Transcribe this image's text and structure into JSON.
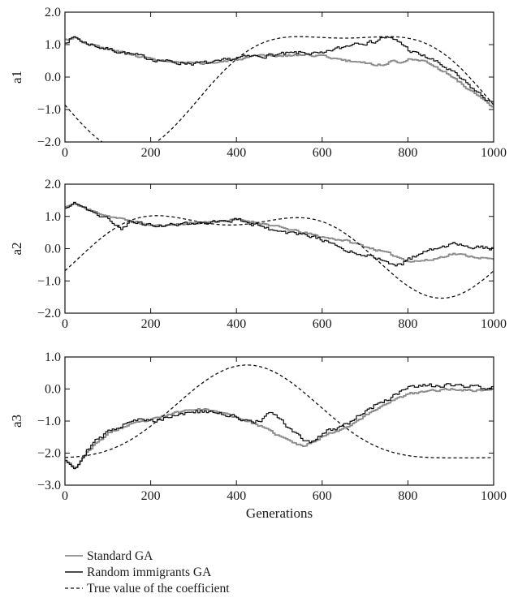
{
  "chart_data": [
    {
      "type": "line",
      "ylabel": "a1",
      "xlabel": "",
      "xlim": [
        0,
        1000
      ],
      "ylim": [
        -2.0,
        2.0
      ],
      "xticks": [
        0,
        200,
        400,
        600,
        800,
        1000
      ],
      "yticks": [
        "2.0",
        "1.0",
        "0.0",
        "-1.0",
        "-2.0"
      ],
      "series": [
        {
          "name": "Standard GA",
          "color": "#8c8c8c",
          "x": [
            0,
            20,
            40,
            60,
            80,
            100,
            150,
            200,
            250,
            300,
            350,
            400,
            450,
            500,
            550,
            600,
            650,
            700,
            720,
            740,
            760,
            780,
            800,
            850,
            900,
            950,
            1000
          ],
          "y": [
            1.15,
            1.25,
            1.05,
            1.0,
            0.9,
            0.85,
            0.7,
            0.55,
            0.45,
            0.42,
            0.45,
            0.55,
            0.65,
            0.65,
            0.7,
            0.65,
            0.5,
            0.45,
            0.35,
            0.4,
            0.5,
            0.45,
            0.6,
            0.4,
            0.0,
            -0.5,
            -1.0
          ],
          "noise": 0.05,
          "seed": 3
        },
        {
          "name": "Random immigrants GA",
          "color": "#111111",
          "x": [
            0,
            20,
            40,
            60,
            80,
            100,
            150,
            200,
            250,
            300,
            350,
            400,
            450,
            500,
            550,
            600,
            620,
            640,
            660,
            680,
            700,
            720,
            740,
            760,
            780,
            800,
            850,
            900,
            950,
            1000
          ],
          "y": [
            1.1,
            1.25,
            1.05,
            1.0,
            0.9,
            0.85,
            0.7,
            0.55,
            0.45,
            0.42,
            0.45,
            0.6,
            0.65,
            0.7,
            0.75,
            0.7,
            0.85,
            0.9,
            1.0,
            1.1,
            1.05,
            1.1,
            1.25,
            1.15,
            1.05,
            0.8,
            0.55,
            0.15,
            -0.4,
            -0.9
          ],
          "noise": 0.09,
          "seed": 7
        },
        {
          "name": "True value of the coefficient",
          "color": "#111111",
          "dashed": true,
          "fn": "1.75*cos(2*pi*(x-650)/1000)-0.55*cos(4*pi*(x-650)/1000)"
        }
      ]
    },
    {
      "type": "line",
      "ylabel": "a2",
      "xlabel": "",
      "xlim": [
        0,
        1000
      ],
      "ylim": [
        -2.0,
        2.0
      ],
      "xticks": [
        0,
        200,
        400,
        600,
        800,
        1000
      ],
      "yticks": [
        "2.0",
        "1.0",
        "0.0",
        "-1.0",
        "-2.0"
      ],
      "series": [
        {
          "name": "Standard GA",
          "color": "#8c8c8c",
          "x": [
            0,
            20,
            50,
            100,
            150,
            200,
            250,
            300,
            350,
            400,
            450,
            500,
            550,
            600,
            650,
            700,
            750,
            800,
            850,
            900,
            950,
            1000
          ],
          "y": [
            1.3,
            1.4,
            1.2,
            1.0,
            0.85,
            0.7,
            0.75,
            0.8,
            0.85,
            0.9,
            0.8,
            0.65,
            0.5,
            0.35,
            0.25,
            0.05,
            -0.15,
            -0.4,
            -0.35,
            -0.15,
            -0.25,
            -0.35
          ],
          "noise": 0.05,
          "seed": 11
        },
        {
          "name": "Random immigrants GA",
          "color": "#111111",
          "x": [
            0,
            20,
            50,
            100,
            130,
            150,
            200,
            250,
            300,
            350,
            400,
            450,
            500,
            550,
            600,
            650,
            700,
            750,
            780,
            800,
            850,
            900,
            950,
            1000
          ],
          "y": [
            1.3,
            1.4,
            1.2,
            0.9,
            0.6,
            0.85,
            0.7,
            0.75,
            0.8,
            0.85,
            0.9,
            0.7,
            0.5,
            0.45,
            0.25,
            -0.05,
            -0.2,
            -0.45,
            -0.5,
            -0.3,
            -0.05,
            0.15,
            0.05,
            0.0
          ],
          "noise": 0.08,
          "seed": 19
        },
        {
          "name": "True value of the coefficient",
          "color": "#111111",
          "dashed": true,
          "fn": "0.15+1.1*cos(2*pi*(x-380)/1000)-0.55*cos(4*pi*(x-380)/1000)+0.05*sin(2*pi*x/1000)"
        }
      ]
    },
    {
      "type": "line",
      "ylabel": "a3",
      "xlabel": "Generations",
      "xlim": [
        0,
        1000
      ],
      "ylim": [
        -3.0,
        1.0
      ],
      "xticks": [
        0,
        200,
        400,
        600,
        800,
        1000
      ],
      "yticks": [
        "1.0",
        "0.0",
        "-1.0",
        "-2.0",
        "-3.0"
      ],
      "series": [
        {
          "name": "Standard GA",
          "color": "#8c8c8c",
          "x": [
            0,
            20,
            50,
            100,
            150,
            200,
            250,
            300,
            350,
            400,
            450,
            500,
            550,
            600,
            650,
            700,
            750,
            800,
            850,
            900,
            950,
            1000
          ],
          "y": [
            -2.2,
            -2.5,
            -1.9,
            -1.35,
            -1.1,
            -0.95,
            -0.75,
            -0.6,
            -0.7,
            -0.9,
            -1.15,
            -1.5,
            -1.8,
            -1.45,
            -1.2,
            -0.8,
            -0.4,
            -0.15,
            -0.05,
            0.0,
            -0.05,
            0.0
          ],
          "noise": 0.05,
          "seed": 23
        },
        {
          "name": "Random immigrants GA",
          "color": "#111111",
          "x": [
            0,
            20,
            50,
            100,
            150,
            200,
            250,
            300,
            350,
            400,
            450,
            470,
            500,
            550,
            570,
            600,
            650,
            700,
            750,
            800,
            850,
            900,
            950,
            1000
          ],
          "y": [
            -2.2,
            -2.5,
            -1.8,
            -1.3,
            -0.95,
            -1.0,
            -0.8,
            -0.7,
            -0.75,
            -0.9,
            -1.05,
            -0.7,
            -1.0,
            -1.6,
            -1.65,
            -1.35,
            -1.1,
            -0.65,
            -0.3,
            0.05,
            0.1,
            0.1,
            0.05,
            0.05
          ],
          "noise": 0.1,
          "seed": 29
        },
        {
          "name": "True value of the coefficient",
          "color": "#111111",
          "dashed": true,
          "fn": "-1.05+1.45*sin(2*pi*(x-175)/1000)-0.35*cos(4*pi*(x-175)/1000)"
        }
      ]
    }
  ],
  "legend": {
    "items": [
      {
        "label": "Standard GA",
        "color": "#8c8c8c",
        "style": "solid"
      },
      {
        "label": "Random immigrants GA",
        "color": "#111111",
        "style": "solid"
      },
      {
        "label": "True value of the coefficient",
        "color": "#111111",
        "style": "dashed"
      }
    ]
  }
}
